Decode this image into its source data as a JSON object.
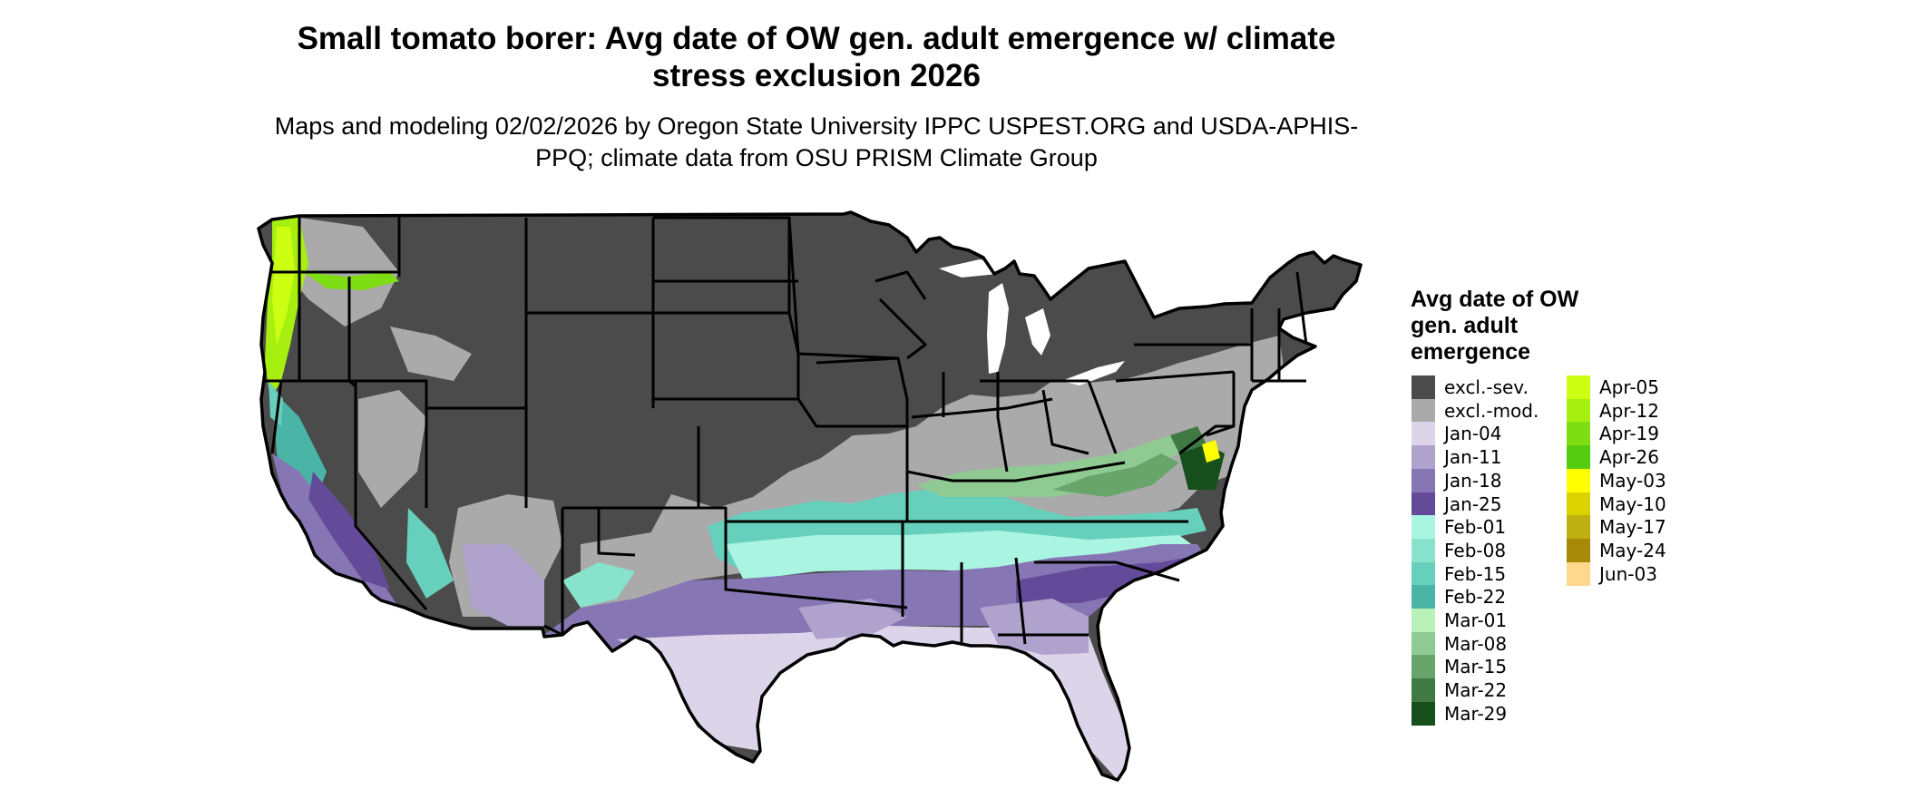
{
  "title": "Small tomato borer: Avg date of OW gen. adult emergence w/ climate stress exclusion 2026",
  "subtitle": "Maps and modeling 02/02/2026 by Oregon State University IPPC USPEST.ORG and USDA-APHIS-PPQ; climate data from OSU PRISM Climate Group",
  "legend": {
    "title": "Avg date of OW gen. adult emergence",
    "items": [
      {
        "label": "excl.-sev.",
        "color": "#4b4b4b"
      },
      {
        "label": "excl.-mod.",
        "color": "#aaaaaa"
      },
      {
        "label": "Jan-04",
        "color": "#dcd5ea"
      },
      {
        "label": "Jan-11",
        "color": "#afa3cd"
      },
      {
        "label": "Jan-18",
        "color": "#8776b4"
      },
      {
        "label": "Jan-25",
        "color": "#634b9a"
      },
      {
        "label": "Feb-01",
        "color": "#a9f5e2"
      },
      {
        "label": "Feb-08",
        "color": "#87e3cc"
      },
      {
        "label": "Feb-15",
        "color": "#67d0bc"
      },
      {
        "label": "Feb-22",
        "color": "#4ab5a6"
      },
      {
        "label": "Mar-01",
        "color": "#b8f2b8"
      },
      {
        "label": "Mar-08",
        "color": "#8fca92"
      },
      {
        "label": "Mar-15",
        "color": "#68a56b"
      },
      {
        "label": "Mar-22",
        "color": "#3f7a45"
      },
      {
        "label": "Mar-29",
        "color": "#164f1b"
      },
      {
        "label": "Apr-05",
        "color": "#ccff11"
      },
      {
        "label": "Apr-12",
        "color": "#a6ef10"
      },
      {
        "label": "Apr-19",
        "color": "#7fdd14"
      },
      {
        "label": "Apr-26",
        "color": "#55cc11"
      },
      {
        "label": "May-03",
        "color": "#ffff00"
      },
      {
        "label": "May-10",
        "color": "#dcd200"
      },
      {
        "label": "May-17",
        "color": "#bdb011"
      },
      {
        "label": "May-24",
        "color": "#a88a08"
      },
      {
        "label": "Jun-03",
        "color": "#ffd88e"
      }
    ]
  },
  "map": {
    "region": "Contiguous United States",
    "colors": {
      "border": "#000000",
      "water": "#ffffff"
    }
  }
}
